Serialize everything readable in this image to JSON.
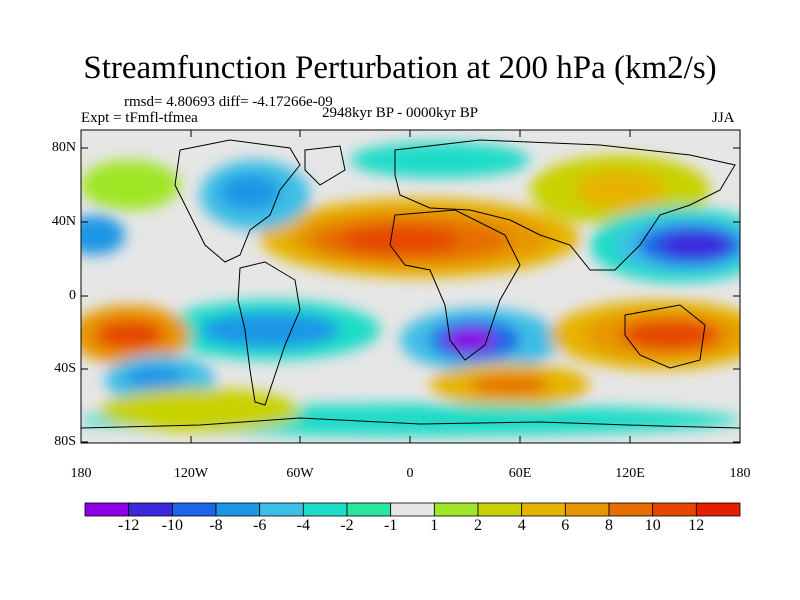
{
  "title": "Streamfunction Perturbation at 200 hPa (km2/s)",
  "stats_line": "rmsd= 4.80693 diff= -4.17266e-09",
  "experiment": "Expt = tFmfl-tfmea",
  "period": "2948kyr BP - 0000kyr BP",
  "season": "JJA",
  "latitude_labels": [
    "80N",
    "40N",
    "0",
    "40S",
    "80S"
  ],
  "longitude_labels": [
    "180",
    "120W",
    "60W",
    "0",
    "60E",
    "120E",
    "180"
  ],
  "colorbar": {
    "labels": [
      "-12",
      "-10",
      "-8",
      "-6",
      "-4",
      "-2",
      "-1",
      "1",
      "2",
      "4",
      "6",
      "8",
      "10",
      "12"
    ],
    "colors": [
      "#8c00e6",
      "#3c28dc",
      "#1e64e6",
      "#1e96e6",
      "#3cbee6",
      "#1edcc8",
      "#28e6a0",
      "#e6e6e6",
      "#a0e628",
      "#c8d200",
      "#e6b400",
      "#e69600",
      "#e66e00",
      "#e64600",
      "#e61e00"
    ]
  }
}
